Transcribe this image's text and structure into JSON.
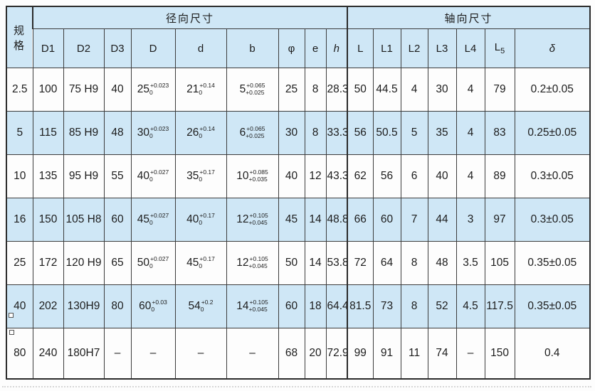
{
  "table": {
    "corner_header": "规格",
    "groups": [
      {
        "label": "径向尺寸",
        "span": 9
      },
      {
        "label": "轴向尺寸",
        "span": 7
      }
    ],
    "columns": [
      {
        "label": "D1"
      },
      {
        "label": "D2"
      },
      {
        "label": "D3"
      },
      {
        "label": "D"
      },
      {
        "label": "d"
      },
      {
        "label": "b"
      },
      {
        "label": "φ"
      },
      {
        "label": "e"
      },
      {
        "label": "h",
        "em": true
      },
      {
        "label": "L",
        "sep": true
      },
      {
        "label": "L1"
      },
      {
        "label": "L2"
      },
      {
        "label": "L3"
      },
      {
        "label": "L4"
      },
      {
        "label": "L",
        "sub": "5"
      },
      {
        "label": "δ",
        "em": true
      }
    ],
    "rows": [
      {
        "spec": "2.5",
        "shaded": false,
        "cells": [
          "100",
          "75 H9",
          "40",
          {
            "v": "25",
            "up": "+0.023",
            "lo": "0"
          },
          {
            "v": "21",
            "up": "+0.14",
            "lo": "0"
          },
          {
            "v": "5",
            "up": "+0.065",
            "lo": "+0.025"
          },
          "25",
          "8",
          "28.3",
          "50",
          "44.5",
          "4",
          "30",
          "4",
          "79",
          "0.2±0.05"
        ]
      },
      {
        "spec": "5",
        "shaded": true,
        "cells": [
          "115",
          "85 H9",
          "48",
          {
            "v": "30",
            "up": "+0.023",
            "lo": "0"
          },
          {
            "v": "26",
            "up": "+0.14",
            "lo": "0"
          },
          {
            "v": "6",
            "up": "+0.065",
            "lo": "+0.025"
          },
          "30",
          "8",
          "33.3",
          "56",
          "50.5",
          "5",
          "35",
          "4",
          "83",
          "0.25±0.05"
        ]
      },
      {
        "spec": "10",
        "shaded": false,
        "cells": [
          "135",
          "95 H9",
          "55",
          {
            "v": "40",
            "up": "+0.027",
            "lo": "0"
          },
          {
            "v": "35",
            "up": "+0.17",
            "lo": "0"
          },
          {
            "v": "10",
            "up": "+0.085",
            "lo": "+0.035"
          },
          "40",
          "12",
          "43.3",
          "62",
          "56",
          "6",
          "40",
          "4",
          "89",
          "0.3±0.05"
        ]
      },
      {
        "spec": "16",
        "shaded": true,
        "cells": [
          "150",
          "105 H8",
          "60",
          {
            "v": "45",
            "up": "+0.027",
            "lo": "0"
          },
          {
            "v": "40",
            "up": "+0.17",
            "lo": "0"
          },
          {
            "v": "12",
            "up": "+0.105",
            "lo": "+0.045"
          },
          "45",
          "14",
          "48.8",
          "66",
          "60",
          "7",
          "44",
          "3",
          "97",
          "0.3±0.05"
        ]
      },
      {
        "spec": "25",
        "shaded": false,
        "cells": [
          "172",
          "120 H9",
          "65",
          {
            "v": "50",
            "up": "+0.027",
            "lo": "0"
          },
          {
            "v": "45",
            "up": "+0.17",
            "lo": "0"
          },
          {
            "v": "12",
            "up": "+0.105",
            "lo": "+0.045"
          },
          "50",
          "14",
          "53.8",
          "72",
          "64",
          "8",
          "48",
          "3.5",
          "105",
          "0.35±0.05"
        ]
      },
      {
        "spec": "40",
        "shaded": true,
        "cells": [
          "202",
          "130H9",
          "80",
          {
            "v": "60",
            "up": "+0.03",
            "lo": "0"
          },
          {
            "v": "54",
            "up": "+0.2",
            "lo": "0"
          },
          {
            "v": "14",
            "up": "+0.105",
            "lo": "+0.045"
          },
          "60",
          "18",
          "64.4",
          "81.5",
          "73",
          "8",
          "52",
          "4.5",
          "117.5",
          "0.35±0.05"
        ]
      },
      {
        "spec": "80",
        "shaded": false,
        "cells": [
          "240",
          "180H7",
          "–",
          "–",
          "–",
          "–",
          "68",
          "20",
          "72.9",
          "99",
          "91",
          "11",
          "74",
          "–",
          "150",
          "0.4"
        ]
      }
    ]
  },
  "colors": {
    "header_bg": "#cfe7f6",
    "row_alt_bg": "#cfe7f6",
    "border": "#2b2b2b",
    "text": "#1c1c1c"
  }
}
